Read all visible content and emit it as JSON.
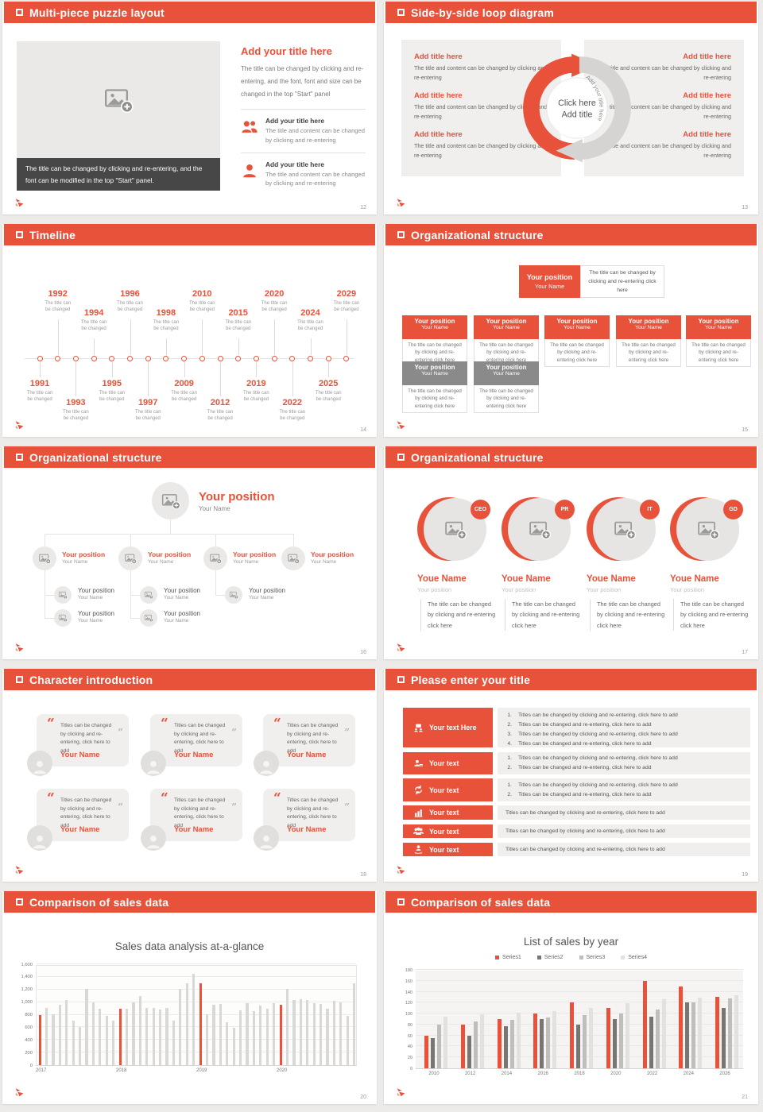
{
  "accent": "#E8523A",
  "slides": {
    "puzzle": {
      "title": "Multi-piece puzzle layout",
      "page": "12",
      "image_caption": "The title can be changed by clicking and re-entering, and the font can be modified in the top \"Start\" panel.",
      "heading": "Add your title here",
      "body": "The title can be changed by clicking and re-entering, and the font, font and size can be changed in the top \"Start\" panel",
      "items": [
        {
          "title": "Add your title here",
          "text": "The title and content can be changed by clicking and re-entering"
        },
        {
          "title": "Add your title here",
          "text": "The title and content can be changed by clicking and re-entering"
        }
      ]
    },
    "loop": {
      "title": "Side-by-side loop diagram",
      "page": "13",
      "center_line1": "Click here",
      "center_line2": "Add title",
      "arc_left_label": "Add your title here",
      "arc_right_label": "Add your title here",
      "left_items": [
        {
          "title": "Add title here",
          "text": "The title and content can be changed by clicking and re-entering"
        },
        {
          "title": "Add title here",
          "text": "The title and content can be changed by clicking and re-entering"
        },
        {
          "title": "Add title here",
          "text": "The title and content can be changed by clicking and re-entering"
        }
      ],
      "right_items": [
        {
          "title": "Add title here",
          "text": "The title and content can be changed by clicking and re-entering"
        },
        {
          "title": "Add title here",
          "text": "The title and content can be changed by clicking and re-entering"
        },
        {
          "title": "Add title here",
          "text": "The title and content can be changed by clicking and re-entering"
        }
      ]
    },
    "timeline": {
      "title": "Timeline",
      "page": "14",
      "note_line1": "The title can",
      "note_line2": "be changed",
      "years_top": [
        "1992",
        "1994",
        "1996",
        "1998",
        "2010",
        "2015",
        "2020",
        "2024",
        "2029"
      ],
      "years_bottom": [
        "1991",
        "1993",
        "1995",
        "1997",
        "2009",
        "2012",
        "2019",
        "2022",
        "2025"
      ]
    },
    "org1": {
      "title": "Organizational structure",
      "page": "15",
      "root": {
        "position": "Your position",
        "name": "Your Name",
        "note": "The title can be changed by clicking and re-entering click here"
      },
      "card_text": "The title can be changed by clicking and re-entering click here",
      "red_cards": [
        {
          "position": "Your position",
          "name": "Your Name"
        },
        {
          "position": "Your position",
          "name": "Your Name"
        },
        {
          "position": "Your position",
          "name": "Your Name"
        },
        {
          "position": "Your position",
          "name": "Your Name"
        },
        {
          "position": "Your position",
          "name": "Your Name"
        }
      ],
      "gray_cards": [
        {
          "position": "Your position",
          "name": "Your Name"
        },
        {
          "position": "Your position",
          "name": "Your Name"
        }
      ]
    },
    "org2": {
      "title": "Organizational structure",
      "page": "16",
      "root": {
        "position": "Your position",
        "name": "Your Name"
      },
      "branches": [
        {
          "position": "Your position",
          "name": "Your Name"
        },
        {
          "position": "Your position",
          "name": "Your Name"
        },
        {
          "position": "Your position",
          "name": "Your Name"
        },
        {
          "position": "Your position",
          "name": "Your Name"
        }
      ],
      "subs": [
        {
          "position": "Your position",
          "name": "Your Name"
        },
        {
          "position": "Your position",
          "name": "Your Name"
        },
        {
          "position": "Your position",
          "name": "Your Name"
        },
        {
          "position": "Your position",
          "name": "Your Name"
        },
        {
          "position": "Your position",
          "name": "Your Name"
        }
      ]
    },
    "org3": {
      "title": "Organizational structure",
      "page": "17",
      "members": [
        {
          "badge": "CEO",
          "name": "Youe Name",
          "role": "Your position",
          "text": "The title can be changed by clicking and re-entering click here"
        },
        {
          "badge": "PR",
          "name": "Youe Name",
          "role": "Your position",
          "text": "The title can be changed by clicking and re-entering click here"
        },
        {
          "badge": "IT",
          "name": "Youe Name",
          "role": "Your position",
          "text": "The title can be changed by clicking and re-entering click here"
        },
        {
          "badge": "GD",
          "name": "Youe Name",
          "role": "Your position",
          "text": "The title can be changed by clicking and re-entering click here"
        }
      ]
    },
    "characters": {
      "title": "Character introduction",
      "page": "18",
      "cards": [
        {
          "text": "Titles can be changed by clicking and re-entering, click here to add",
          "name": "Your Name"
        },
        {
          "text": "Titles can be changed by clicking and re-entering, click here to add",
          "name": "Your Name"
        },
        {
          "text": "Titles can be changed by clicking and re-entering, click here to add",
          "name": "Your Name"
        },
        {
          "text": "Titles can be changed by clicking and re-entering, click here to add",
          "name": "Your Name"
        },
        {
          "text": "Titles can be changed by clicking and re-entering, click here to add",
          "name": "Your Name"
        },
        {
          "text": "Titles can be changed by clicking and re-entering, click here to add",
          "name": "Your Name"
        }
      ],
      "open_quote": "“",
      "close_quote": "”"
    },
    "list": {
      "title": "Please enter your title",
      "page": "19",
      "rows": [
        {
          "label": "Your text Here",
          "icon": "presentation-icon",
          "items": [
            "Titles can be changed by clicking and re-entering, click here to add",
            "Titles can be changed and re-entering, click here to add",
            "Titles can be changed by clicking and re-entering, click here to add",
            "Titles can be changed and re-entering, click here to add"
          ]
        },
        {
          "label": "Your text",
          "icon": "person-desk-icon",
          "items": [
            "Titles can be changed by clicking and re-entering, click here to add",
            "Titles can be changed and re-entering, click here to add"
          ]
        },
        {
          "label": "Your text",
          "icon": "sync-icon",
          "items": [
            "Titles can be changed by clicking and re-entering, click here to add",
            "Titles can be changed and re-entering, click here to add"
          ]
        },
        {
          "label": "Your text",
          "icon": "bar-chart-icon",
          "single": "Titles can be changed by clicking and re-entering, click here to add"
        },
        {
          "label": "Your text",
          "icon": "group-icon",
          "single": "Titles can be changed by clicking and re-entering, click here to add"
        },
        {
          "label": "Your text",
          "icon": "hand-person-icon",
          "single": "Titles can be changed by clicking and re-entering, click here to add"
        }
      ]
    },
    "chartA": {
      "title": "Comparison of sales data",
      "page": "20"
    },
    "chartB": {
      "title": "Comparison of sales data",
      "page": "21"
    }
  },
  "chart_data": [
    {
      "type": "bar",
      "title": "Sales data analysis at-a-glance",
      "x_tick_labels": [
        "2017",
        "2018",
        "2019",
        "2020"
      ],
      "group_size": 12,
      "ylim": [
        0,
        1600
      ],
      "yticks": [
        0,
        200,
        400,
        600,
        800,
        1000,
        1200,
        1400,
        1600
      ],
      "ytick_labels": [
        "0",
        "200",
        "400",
        "600",
        "800",
        "1,000",
        "1,200",
        "1,400",
        "1,600"
      ],
      "bar_color": "#D9D8D6",
      "highlight_color": "#E8523A",
      "highlight_indices": [
        0,
        12,
        24,
        36
      ],
      "values": [
        800,
        910,
        810,
        960,
        1030,
        710,
        610,
        1210,
        990,
        900,
        780,
        710,
        890,
        900,
        1000,
        1100,
        910,
        910,
        880,
        910,
        710,
        1210,
        1300,
        1450,
        1300,
        810,
        960,
        970,
        680,
        590,
        870,
        980,
        860,
        950,
        890,
        980,
        960,
        1210,
        1030,
        1040,
        1030,
        980,
        970,
        890,
        1020,
        1000,
        780,
        1300
      ]
    },
    {
      "type": "bar",
      "title": "List of sales by year",
      "categories": [
        "2010",
        "2012",
        "2014",
        "2016",
        "2018",
        "2020",
        "2022",
        "2024",
        "2026"
      ],
      "ylim": [
        0,
        180
      ],
      "yticks": [
        0,
        20,
        40,
        60,
        80,
        100,
        120,
        140,
        160,
        180
      ],
      "legend_position": "top",
      "series": [
        {
          "name": "Series1",
          "color": "#E8523A",
          "values": [
            60,
            80,
            90,
            100,
            120,
            110,
            160,
            150,
            130
          ]
        },
        {
          "name": "Series2",
          "color": "#767675",
          "values": [
            55,
            60,
            77,
            90,
            80,
            90,
            95,
            120,
            110
          ]
        },
        {
          "name": "Series3",
          "color": "#BFBEBC",
          "values": [
            80,
            86,
            89,
            93,
            97,
            100,
            108,
            120,
            128
          ]
        },
        {
          "name": "Series4",
          "color": "#E2E1DF",
          "values": [
            95,
            99,
            102,
            105,
            110,
            119,
            126,
            129,
            133
          ]
        }
      ]
    }
  ]
}
